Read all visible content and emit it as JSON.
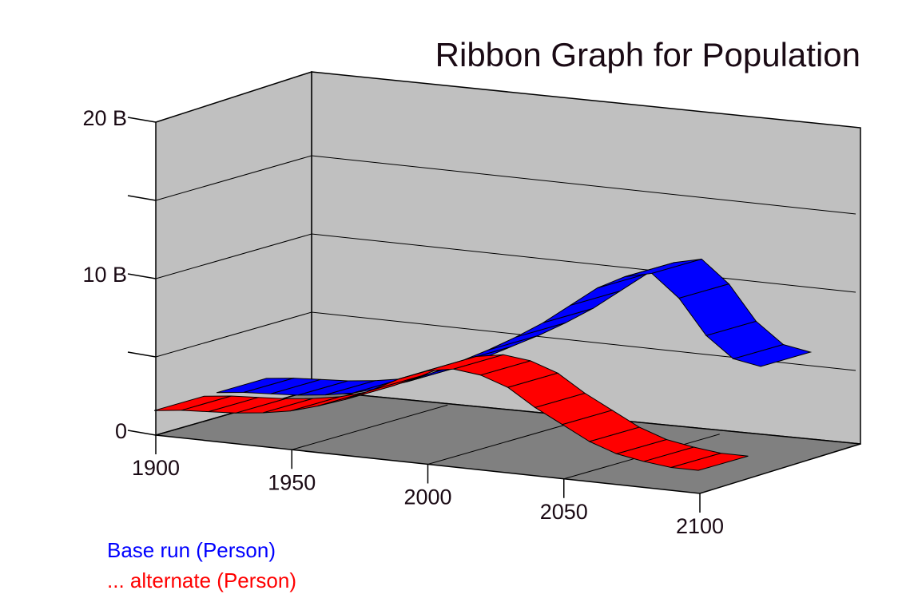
{
  "chart_data": {
    "type": "ribbon",
    "title": "Ribbon Graph for Population",
    "x": [
      1900,
      1910,
      1920,
      1930,
      1940,
      1950,
      1960,
      1970,
      1980,
      1990,
      2000,
      2010,
      2020,
      2030,
      2040,
      2050,
      2060,
      2070,
      2080,
      2090,
      2100
    ],
    "x_ticks": [
      "1900",
      "1950",
      "2000",
      "2050",
      "2100"
    ],
    "y_ticks": [
      "0",
      "10 B",
      "20 B"
    ],
    "ylim": [
      0,
      20
    ],
    "y_unit": "B",
    "grid": true,
    "legend_position": "bottom-left",
    "series": [
      {
        "name": "Base run (Person)",
        "color": "#0000ff",
        "values": [
          1.6,
          1.8,
          1.9,
          2.0,
          2.2,
          2.5,
          3.0,
          3.6,
          4.4,
          5.3,
          6.2,
          7.2,
          8.3,
          9.6,
          10.9,
          11.8,
          12.2,
          10.8,
          8.6,
          7.3,
          7.0
        ]
      },
      {
        "name": "... alternate (Person)",
        "color": "#ff0000",
        "values": [
          1.6,
          1.8,
          1.9,
          2.0,
          2.2,
          2.5,
          3.0,
          3.6,
          4.4,
          5.3,
          6.0,
          6.3,
          6.1,
          5.5,
          4.4,
          3.5,
          2.6,
          2.0,
          1.7,
          1.5,
          1.5
        ]
      }
    ]
  }
}
